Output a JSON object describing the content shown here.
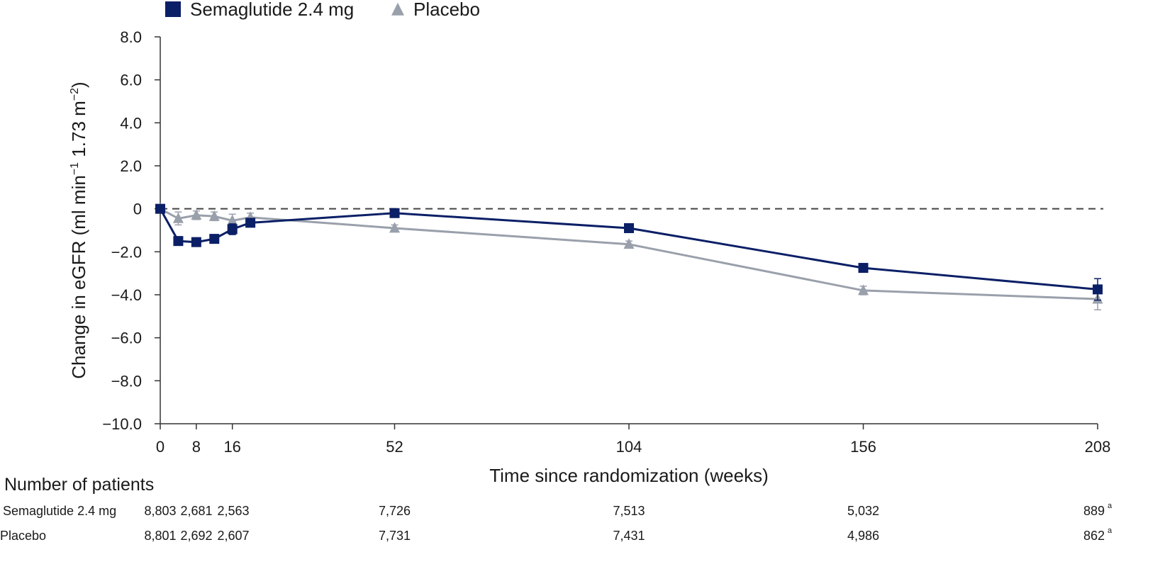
{
  "chart_data": {
    "type": "line",
    "xlabel": "Time since randomization (weeks)",
    "ylabel_parts": [
      "Change in eGFR (ml min",
      "−1",
      " 1.73 m",
      "−2",
      ")"
    ],
    "ylim": [
      -10,
      8
    ],
    "xlim": [
      0,
      208
    ],
    "yticks": [
      {
        "value": 8,
        "label": "8.0"
      },
      {
        "value": 6,
        "label": "6.0"
      },
      {
        "value": 4,
        "label": "4.0"
      },
      {
        "value": 2,
        "label": "2.0"
      },
      {
        "value": 0,
        "label": "0"
      },
      {
        "value": -2,
        "label": "−2.0"
      },
      {
        "value": -4,
        "label": "−4.0"
      },
      {
        "value": -6,
        "label": "−6.0"
      },
      {
        "value": -8,
        "label": "−8.0"
      },
      {
        "value": -10,
        "label": "−10.0"
      }
    ],
    "xticks": [
      {
        "value": 0,
        "label": "0"
      },
      {
        "value": 8,
        "label": "8"
      },
      {
        "value": 16,
        "label": "16"
      },
      {
        "value": 52,
        "label": "52"
      },
      {
        "value": 104,
        "label": "104"
      },
      {
        "value": 156,
        "label": "156"
      },
      {
        "value": 208,
        "label": "208"
      }
    ],
    "reference_line": {
      "y": 0,
      "style": "dashed"
    },
    "legend_position": "top-left",
    "series": [
      {
        "name": "Placebo",
        "marker": "triangle",
        "color": "#9aa0ab",
        "x": [
          0,
          4,
          8,
          12,
          16,
          20,
          52,
          104,
          156,
          208
        ],
        "y": [
          0.0,
          -0.45,
          -0.3,
          -0.35,
          -0.55,
          -0.4,
          -0.9,
          -1.65,
          -3.8,
          -4.2
        ],
        "err": [
          0.0,
          0.3,
          0.2,
          0.2,
          0.3,
          0.2,
          0.15,
          0.15,
          0.2,
          0.5
        ]
      },
      {
        "name": "Semaglutide 2.4 mg",
        "marker": "square",
        "color": "#0b1f66",
        "x": [
          0,
          4,
          8,
          12,
          16,
          20,
          52,
          104,
          156,
          208
        ],
        "y": [
          0.0,
          -1.5,
          -1.55,
          -1.4,
          -0.95,
          -0.65,
          -0.2,
          -0.9,
          -2.75,
          -3.75
        ],
        "err": [
          0.0,
          0.2,
          0.2,
          0.2,
          0.25,
          0.15,
          0.1,
          0.1,
          0.2,
          0.5
        ]
      }
    ]
  },
  "patients": {
    "title": "Number of patients",
    "rows": [
      {
        "label": "Semaglutide 2.4 mg",
        "values": [
          {
            "text": "8,803",
            "x": 0,
            "sup": ""
          },
          {
            "text": "2,681",
            "x": 8,
            "sup": ""
          },
          {
            "text": "2,563",
            "x": 16,
            "sup": ""
          },
          {
            "text": "7,726",
            "x": 52,
            "sup": ""
          },
          {
            "text": "7,513",
            "x": 104,
            "sup": ""
          },
          {
            "text": "5,032",
            "x": 156,
            "sup": ""
          },
          {
            "text": "889",
            "x": 208,
            "sup": "a"
          }
        ]
      },
      {
        "label": "Placebo",
        "values": [
          {
            "text": "8,801",
            "x": 0,
            "sup": ""
          },
          {
            "text": "2,692",
            "x": 8,
            "sup": ""
          },
          {
            "text": "2,607",
            "x": 16,
            "sup": ""
          },
          {
            "text": "7,731",
            "x": 52,
            "sup": ""
          },
          {
            "text": "7,431",
            "x": 104,
            "sup": ""
          },
          {
            "text": "4,986",
            "x": 156,
            "sup": ""
          },
          {
            "text": "862",
            "x": 208,
            "sup": "a"
          }
        ]
      }
    ]
  }
}
